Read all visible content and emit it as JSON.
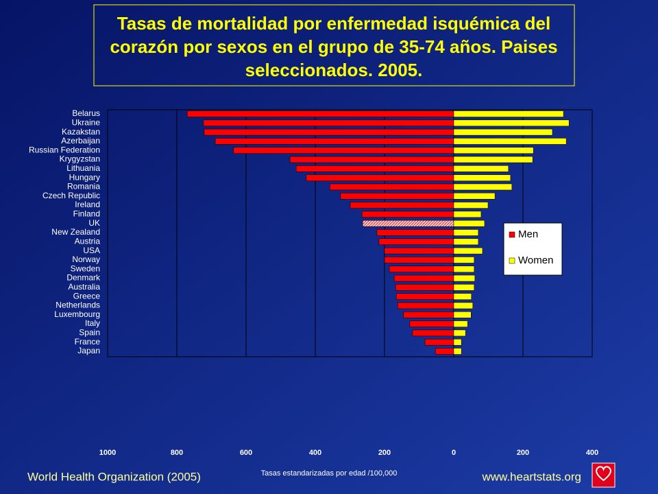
{
  "chart_data": {
    "type": "butterfly",
    "title": [
      "Tasas de mortalidad por enfermedad isquémica del",
      "corazón por sexos en el grupo de 35-74 años. Paises",
      "seleccionados. 2005."
    ],
    "xlabel": "Tasas estandarizadas por edad /100,000",
    "source": "World Health Organization (2005)",
    "website": "www.heartstats.org",
    "categories": [
      "Belarus",
      "Ukraine",
      "Kazakstan",
      "Azerbaijan",
      "Russian Federation",
      "Krygyzstan",
      "Lithuania",
      "Hungary",
      "Romania",
      "Czech Republic",
      "Ireland",
      "Finland",
      "UK",
      "New Zealand",
      "Austria",
      "USA",
      "Norway",
      "Sweden",
      "Denmark",
      "Australia",
      "Greece",
      "Netherlands",
      "Luxembourg",
      "Italy",
      "Spain",
      "France",
      "Japan"
    ],
    "series": [
      {
        "name": "Men",
        "color": "#ff0000",
        "values": [
          770,
          723,
          721,
          689,
          636,
          473,
          455,
          426,
          358,
          327,
          299,
          265,
          263,
          222,
          216,
          200,
          200,
          186,
          172,
          168,
          166,
          162,
          145,
          127,
          119,
          83,
          53
        ]
      },
      {
        "name": "Women",
        "color": "#ffff00",
        "values": [
          317,
          333,
          285,
          325,
          230,
          228,
          158,
          164,
          168,
          119,
          99,
          79,
          89,
          71,
          71,
          83,
          59,
          59,
          61,
          59,
          51,
          55,
          50,
          40,
          34,
          22,
          22
        ]
      }
    ],
    "xlim": [
      -1000,
      400
    ],
    "xticks": [
      {
        "value": -1000,
        "label": "1000"
      },
      {
        "value": -800,
        "label": "800"
      },
      {
        "value": -600,
        "label": "600"
      },
      {
        "value": -400,
        "label": "400"
      },
      {
        "value": -200,
        "label": "200"
      },
      0,
      200,
      400
    ],
    "grid": true
  }
}
